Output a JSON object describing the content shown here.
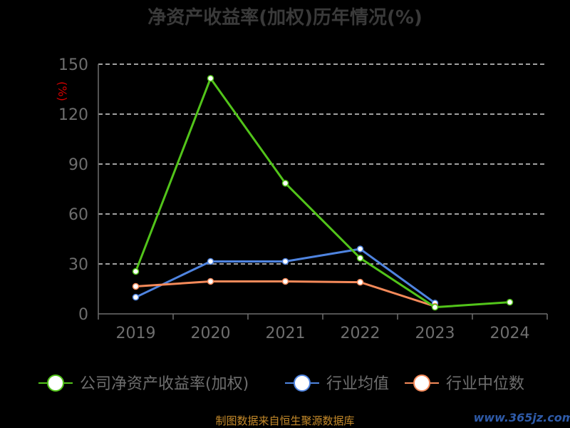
{
  "chart_data": {
    "type": "line",
    "title": "净资产收益率(加权)历年情况(%)",
    "ylabel": "(%)",
    "ylim": [
      0,
      150
    ],
    "yticks": [
      0,
      30,
      60,
      90,
      120,
      150
    ],
    "categories": [
      "2019",
      "2020",
      "2021",
      "2022",
      "2023",
      "2024"
    ],
    "grid": true,
    "legend_position": "bottom",
    "series": [
      {
        "name": "公司净资产收益率(加权)",
        "color": "#52c41a",
        "values": [
          25.5,
          141.5,
          78.5,
          33.5,
          4.0,
          7.0
        ]
      },
      {
        "name": "行业均值",
        "color": "#4f84e0",
        "values": [
          10.0,
          31.5,
          31.5,
          39.0,
          6.5,
          null
        ]
      },
      {
        "name": "行业中位数",
        "color": "#f58a5a",
        "values": [
          16.5,
          19.5,
          19.5,
          19.0,
          4.5,
          null
        ]
      }
    ]
  },
  "footer": "制图数据来自恒生聚源数据库",
  "watermark": "www.365jz.com"
}
